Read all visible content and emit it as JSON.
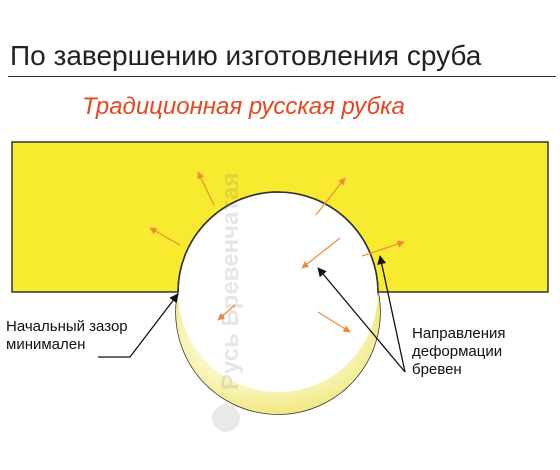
{
  "header": {
    "title": "По завершению изготовления сруба",
    "subtitle": "Традиционная русская рубка"
  },
  "annotations": {
    "initial_gap": [
      "Начальный зазор",
      "минимален"
    ],
    "deformation": [
      "Направления",
      "деформации",
      "бревен"
    ]
  },
  "watermark": {
    "text": "Русь Бревенчатая"
  },
  "colors": {
    "beam": "#f7ea2f",
    "log": "#f6f39a",
    "arrow": "#f08a3a",
    "title": "#222222",
    "subtitle": "#e8461e"
  }
}
